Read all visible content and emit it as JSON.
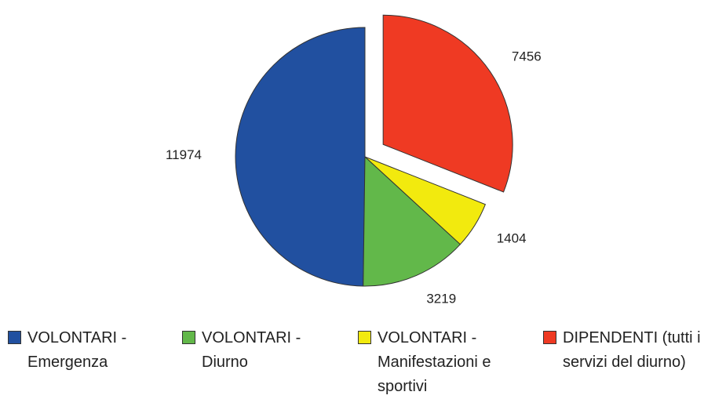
{
  "chart_data": {
    "type": "pie",
    "categories": [
      "VOLONTARI - Emergenza",
      "VOLONTARI - Diurno",
      "VOLONTARI - Manifestazioni e sportivi",
      "DIPENDENTI (tutti i servizi del diurno)"
    ],
    "values": [
      11974,
      3219,
      1404,
      7456
    ],
    "colors": [
      "#2150a0",
      "#62b84a",
      "#f2ea0e",
      "#ef3a23"
    ],
    "exploded": [
      false,
      false,
      false,
      true
    ]
  }
}
